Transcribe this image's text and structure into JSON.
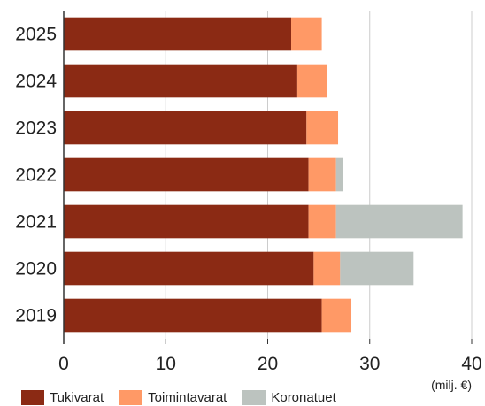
{
  "chart_data": {
    "type": "bar",
    "orientation": "horizontal",
    "stacked": true,
    "categories": [
      "2025",
      "2024",
      "2023",
      "2022",
      "2021",
      "2020",
      "2019"
    ],
    "series": [
      {
        "name": "Tukivarat",
        "color": "#8b2a14",
        "values": [
          22.3,
          22.9,
          23.8,
          24.0,
          24.0,
          24.5,
          25.3
        ]
      },
      {
        "name": "Toimintavarat",
        "color": "#ff9966",
        "values": [
          3.0,
          2.9,
          3.1,
          2.7,
          2.7,
          2.6,
          2.9
        ]
      },
      {
        "name": "Koronatuet",
        "color": "#bcc3bf",
        "values": [
          0,
          0,
          0,
          0.7,
          12.4,
          7.2,
          0
        ]
      }
    ],
    "x_ticks": [
      0,
      10,
      20,
      30,
      40
    ],
    "xlim": [
      0,
      40
    ],
    "unit_label": "(milj. €)",
    "grid": "vertical",
    "legend_position": "bottom-left"
  }
}
